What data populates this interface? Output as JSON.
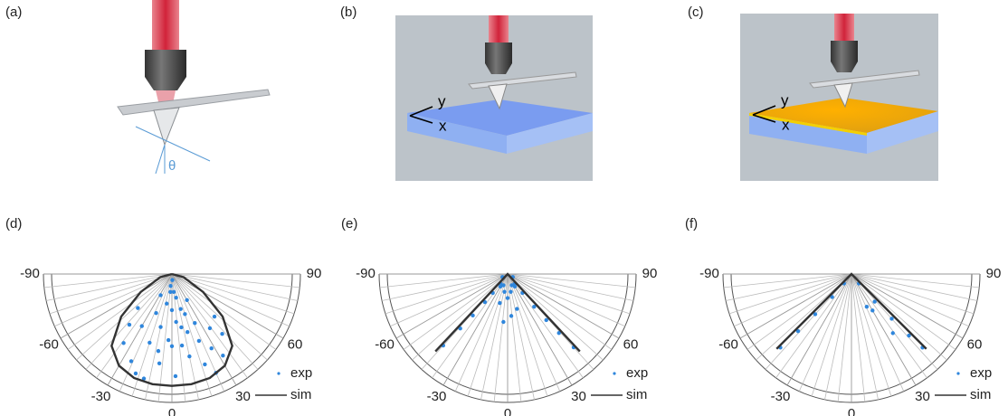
{
  "panels": [
    {
      "label": "(a)",
      "angle": "θ"
    },
    {
      "label": "(b)",
      "axes": [
        "y",
        "x"
      ]
    },
    {
      "label": "(c)",
      "axes": [
        "y",
        "x"
      ]
    }
  ],
  "chart_data": [
    {
      "type": "polar",
      "label": "(d)",
      "thetalim": [
        -90,
        90
      ],
      "rlim": [
        0,
        1
      ],
      "thetaticks": [
        -90,
        -60,
        -30,
        0,
        30,
        60,
        90
      ],
      "minor_thetaticks": [
        -84,
        -78,
        -72,
        -66,
        -54,
        -48,
        -42,
        -36,
        -24,
        -18,
        -12,
        -6,
        6,
        12,
        18,
        24,
        36,
        42,
        48,
        54,
        66,
        72,
        78,
        84
      ],
      "series": [
        {
          "name": "exp",
          "color": "#2f86dc",
          "kind": "points",
          "theta": [
            -40,
            -35,
            -30,
            -25,
            -22,
            -18,
            -15,
            -12,
            -10,
            -8,
            -5,
            -3,
            0,
            2,
            5,
            8,
            10,
            12,
            15,
            18,
            20,
            22,
            25,
            28,
            30,
            35,
            40,
            -20,
            -6,
            6,
            14,
            24,
            -28,
            32,
            -45,
            45,
            0,
            -10,
            10,
            4
          ],
          "r": [
            0.55,
            0.7,
            0.5,
            0.8,
            0.35,
            0.6,
            0.9,
            0.45,
            0.25,
            0.75,
            0.15,
            0.55,
            0.3,
            0.85,
            0.4,
            0.6,
            0.2,
            0.7,
            0.5,
            0.35,
            0.8,
            0.6,
            0.45,
            0.7,
            0.25,
            0.55,
            0.65,
            0.88,
            0.1,
            0.15,
            0.3,
            0.9,
            0.2,
            0.8,
            0.4,
            0.5,
            0.6,
            0.65,
            0.45,
            0.05
          ]
        },
        {
          "name": "sim",
          "color": "#333333",
          "kind": "line",
          "theta": [
            -90,
            -75,
            -60,
            -50,
            -40,
            -30,
            -20,
            -10,
            0,
            10,
            20,
            30,
            40,
            50,
            60,
            75,
            90
          ],
          "r": [
            0,
            0.1,
            0.3,
            0.55,
            0.78,
            0.88,
            0.92,
            0.93,
            0.93,
            0.93,
            0.92,
            0.88,
            0.78,
            0.55,
            0.3,
            0.1,
            0
          ]
        }
      ]
    },
    {
      "type": "polar",
      "label": "(e)",
      "thetalim": [
        -90,
        90
      ],
      "rlim": [
        0,
        1
      ],
      "thetaticks": [
        -90,
        -60,
        -30,
        0,
        30,
        60,
        90
      ],
      "minor_thetaticks": [
        -84,
        -78,
        -72,
        -66,
        -54,
        -48,
        -42,
        -36,
        -24,
        -18,
        -12,
        -6,
        6,
        12,
        18,
        24,
        36,
        42,
        48,
        54,
        66,
        72,
        78,
        84
      ],
      "series": [
        {
          "name": "exp",
          "color": "#2f86dc",
          "kind": "points",
          "theta": [
            -42,
            -41,
            -40,
            -39,
            -38,
            -36,
            -30,
            -20,
            -10,
            0,
            10,
            20,
            30,
            36,
            38,
            39,
            40,
            41,
            42,
            -60,
            60,
            -5,
            5,
            -15,
            15
          ],
          "r": [
            0.8,
            0.6,
            0.45,
            0.3,
            0.2,
            0.1,
            0.12,
            0.1,
            0.15,
            0.2,
            0.15,
            0.1,
            0.12,
            0.1,
            0.2,
            0.35,
            0.5,
            0.65,
            0.82,
            0.05,
            0.05,
            0.4,
            0.35,
            0.25,
            0.3
          ]
        },
        {
          "name": "sim",
          "color": "#333333",
          "kind": "line",
          "theta": [
            -43,
            0,
            43
          ],
          "r": [
            0.88,
            0,
            0.88
          ]
        }
      ]
    },
    {
      "type": "polar",
      "label": "(f)",
      "thetalim": [
        -90,
        90
      ],
      "rlim": [
        0,
        1
      ],
      "thetaticks": [
        -90,
        -60,
        -30,
        0,
        30,
        60,
        90
      ],
      "minor_thetaticks": [
        -84,
        -78,
        -72,
        -66,
        -54,
        -48,
        -42,
        -36,
        -24,
        -18,
        -12,
        -6,
        6,
        12,
        18,
        24,
        36,
        42,
        48,
        54,
        66,
        72,
        78,
        84
      ],
      "series": [
        {
          "name": "exp",
          "color": "#2f86dc",
          "kind": "points",
          "theta": [
            -44,
            -43,
            -42,
            -40,
            -38,
            38,
            40,
            42,
            43,
            44,
            30,
            25,
            35
          ],
          "r": [
            0.85,
            0.65,
            0.45,
            0.25,
            0.1,
            0.1,
            0.3,
            0.5,
            0.7,
            0.85,
            0.35,
            0.3,
            0.6
          ]
        },
        {
          "name": "sim",
          "color": "#333333",
          "kind": "line",
          "theta": [
            -45,
            0,
            45
          ],
          "r": [
            0.88,
            0,
            0.88
          ]
        }
      ]
    }
  ]
}
